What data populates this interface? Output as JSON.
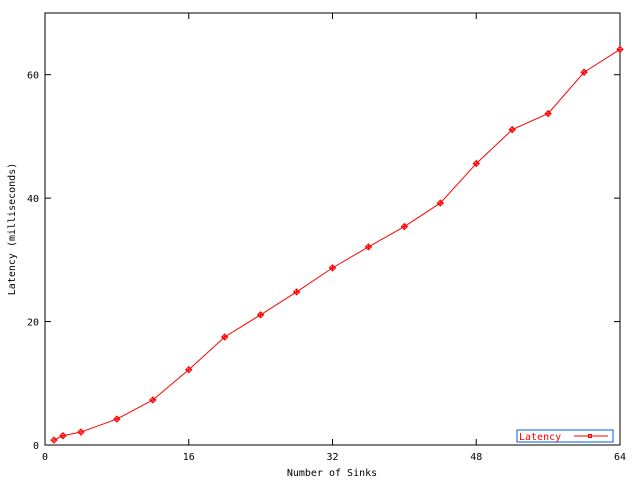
{
  "chart_data": {
    "type": "line",
    "title": "",
    "xlabel": "Number of Sinks",
    "ylabel": "Latency (milliseconds)",
    "xlim": [
      0,
      64
    ],
    "ylim": [
      0,
      70
    ],
    "xticks": [
      "0",
      "16",
      "32",
      "48",
      "64"
    ],
    "yticks": [
      "0",
      "20",
      "40",
      "60"
    ],
    "grid": false,
    "legend_position": "bottom-right",
    "series": [
      {
        "name": "Latency",
        "color": "#ff0000",
        "x": [
          1,
          2,
          4,
          8,
          12,
          16,
          20,
          24,
          28,
          32,
          36,
          40,
          44,
          48,
          52,
          56,
          60,
          64
        ],
        "y": [
          0.8,
          1.5,
          2.1,
          4.2,
          7.3,
          12.2,
          17.5,
          21.1,
          24.8,
          28.7,
          32.1,
          35.4,
          39.2,
          45.6,
          51.1,
          53.7,
          60.4,
          64.1
        ]
      }
    ]
  }
}
